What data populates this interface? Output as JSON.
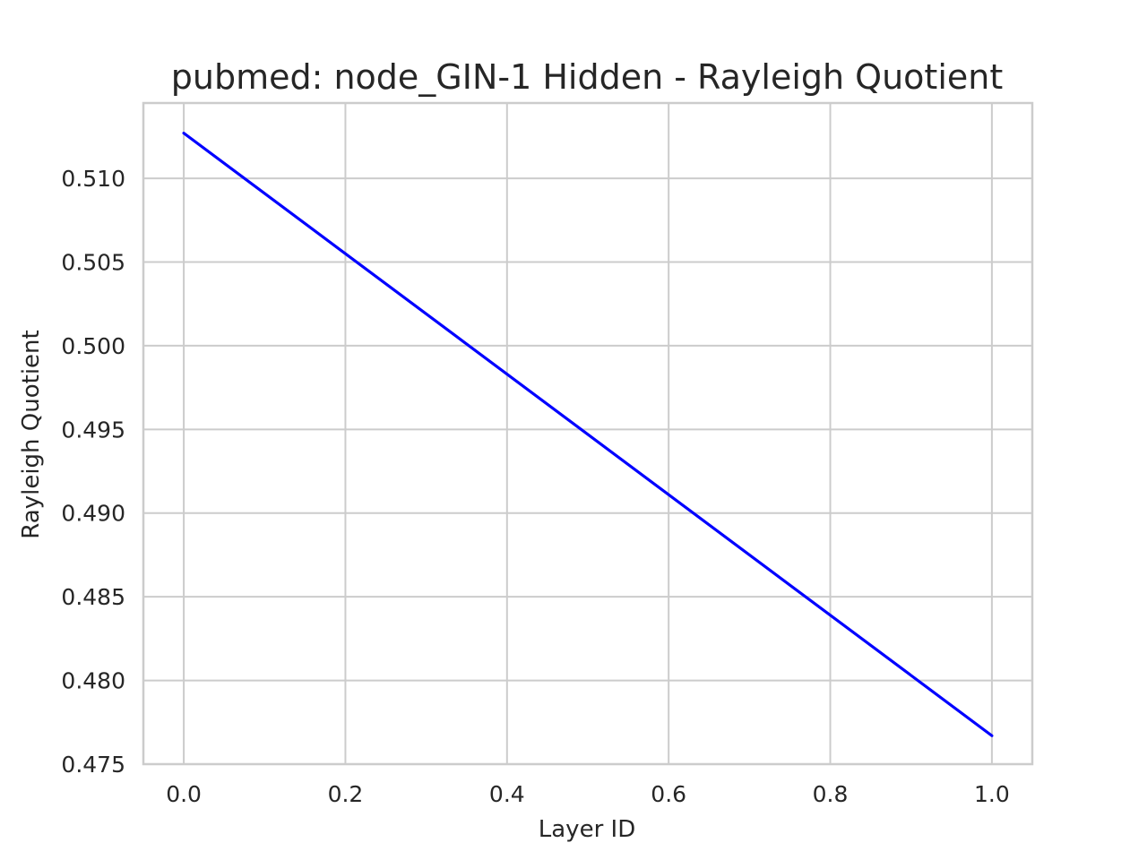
{
  "chart_data": {
    "type": "line",
    "title": "pubmed: node_GIN-1 Hidden - Rayleigh Quotient",
    "xlabel": "Layer ID",
    "ylabel": "Rayleigh Quotient",
    "xlim": [
      -0.05,
      1.05
    ],
    "ylim": [
      0.475,
      0.5145
    ],
    "x_ticks": [
      0.0,
      0.2,
      0.4,
      0.6,
      0.8,
      1.0
    ],
    "x_tick_labels": [
      "0.0",
      "0.2",
      "0.4",
      "0.6",
      "0.8",
      "1.0"
    ],
    "y_ticks": [
      0.475,
      0.48,
      0.485,
      0.49,
      0.495,
      0.5,
      0.505,
      0.51
    ],
    "y_tick_labels": [
      "0.475",
      "0.480",
      "0.485",
      "0.490",
      "0.495",
      "0.500",
      "0.505",
      "0.510"
    ],
    "grid": true,
    "legend": false,
    "series": [
      {
        "x": [
          0.0,
          1.0
        ],
        "y": [
          0.5127,
          0.4767
        ],
        "color": "#0000ff"
      }
    ]
  }
}
